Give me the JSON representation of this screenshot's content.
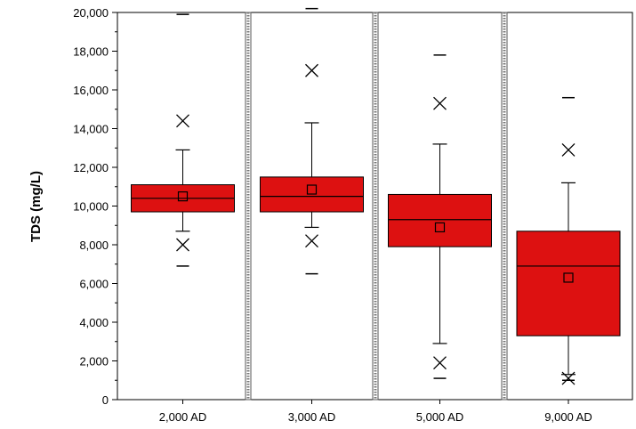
{
  "chart_data": {
    "type": "boxplot",
    "title": "",
    "xlabel": "",
    "ylabel": "TDS (mg/L)",
    "ylim": [
      0,
      20000
    ],
    "y_ticks": [
      0,
      2000,
      4000,
      6000,
      8000,
      10000,
      12000,
      14000,
      16000,
      18000,
      20000
    ],
    "y_tick_labels": [
      "0",
      "2,000",
      "4,000",
      "6,000",
      "8,000",
      "10,000",
      "12,000",
      "14,000",
      "16,000",
      "18,000",
      "20,000"
    ],
    "categories": [
      "2,000 AD",
      "3,000 AD",
      "5,000 AD",
      "9,000 AD"
    ],
    "grid": false,
    "colors": {
      "box_fill": "#dd1111",
      "box_stroke": "#000000",
      "separator": "#777777"
    },
    "boxes": [
      {
        "category": "2,000 AD",
        "q1": 9700,
        "median": 10400,
        "q3": 11100,
        "mean": 10500,
        "whisker_low": 8700,
        "whisker_high": 12900,
        "p1": 8000,
        "p99": 14400,
        "min": 6900,
        "max": 19900
      },
      {
        "category": "3,000 AD",
        "q1": 9700,
        "median": 10500,
        "q3": 11500,
        "mean": 10850,
        "whisker_low": 8900,
        "whisker_high": 14300,
        "p1": 8200,
        "p99": 17000,
        "min": 6500,
        "max": 20200
      },
      {
        "category": "5,000 AD",
        "q1": 7900,
        "median": 9300,
        "q3": 10600,
        "mean": 8900,
        "whisker_low": 2900,
        "whisker_high": 13200,
        "p1": 1900,
        "p99": 15300,
        "min": 1100,
        "max": 17800
      },
      {
        "category": "9,000 AD",
        "q1": 3300,
        "median": 6900,
        "q3": 8700,
        "mean": 6300,
        "whisker_low": 1300,
        "whisker_high": 11200,
        "p1": 1100,
        "p99": 12900,
        "min": 1000,
        "max": 15600
      }
    ]
  }
}
